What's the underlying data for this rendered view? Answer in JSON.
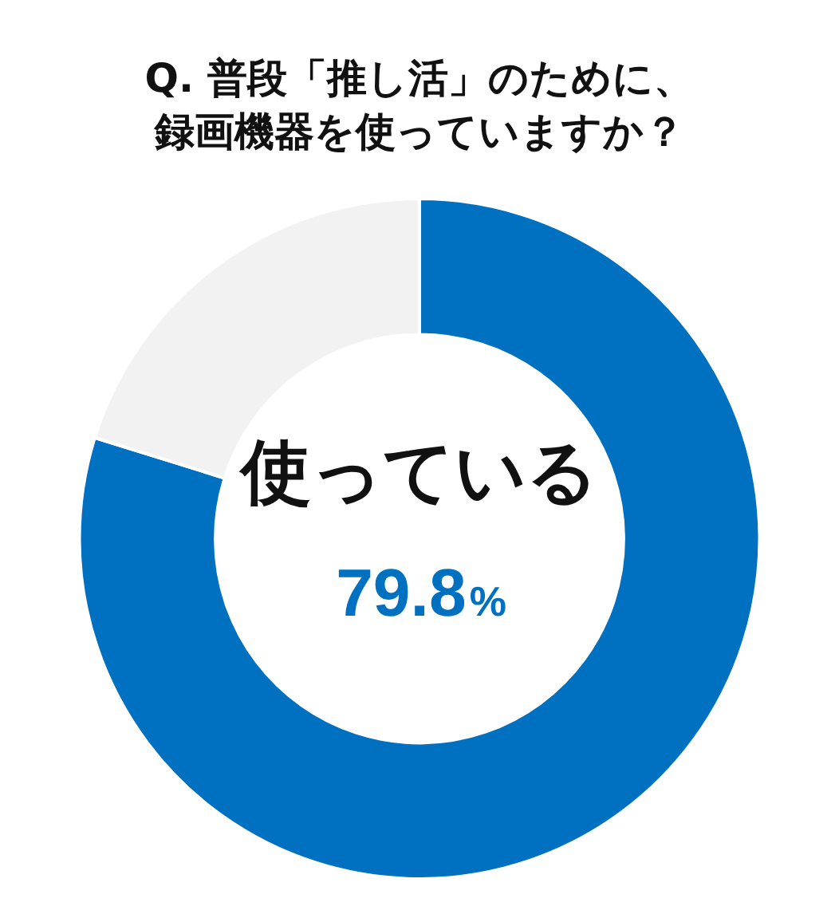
{
  "chart_data": {
    "type": "donut",
    "title": "Q. 普段「推し活」のために、録画機器を使っていますか？",
    "categories": [
      "使っている",
      null
    ],
    "values": [
      79.8,
      20.2
    ],
    "colors": [
      "#0070c0",
      "#f2f2f2"
    ],
    "value_labels": [
      "79.8%",
      null
    ]
  }
}
